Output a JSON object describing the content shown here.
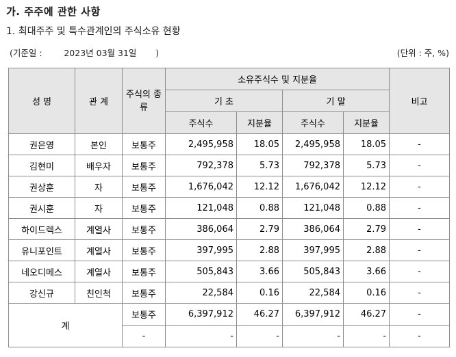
{
  "section_title": "가. 주주에 관한 사항",
  "subsection_title": "1. 최대주주 및 특수관계인의 주식소유 현황",
  "base_date": "(기준일 :        2023년 03월 31일       )",
  "unit": "(단위 : 주, %)",
  "table": {
    "headers": {
      "name": "성 명",
      "relation": "관 계",
      "stock_type": "주식의 종류",
      "ownership_group": "소유주식수 및 지분율",
      "begin": "기 초",
      "end": "기 말",
      "shares": "주식수",
      "ratio": "지분율",
      "note": "비고"
    },
    "rows": [
      {
        "name": "권은영",
        "relation": "본인",
        "type": "보통주",
        "begin_shares": "2,495,958",
        "begin_ratio": "18.05",
        "end_shares": "2,495,958",
        "end_ratio": "18.05",
        "note": "-"
      },
      {
        "name": "김현미",
        "relation": "배우자",
        "type": "보통주",
        "begin_shares": "792,378",
        "begin_ratio": "5.73",
        "end_shares": "792,378",
        "end_ratio": "5.73",
        "note": "-"
      },
      {
        "name": "권상훈",
        "relation": "자",
        "type": "보통주",
        "begin_shares": "1,676,042",
        "begin_ratio": "12.12",
        "end_shares": "1,676,042",
        "end_ratio": "12.12",
        "note": "-"
      },
      {
        "name": "권시훈",
        "relation": "자",
        "type": "보통주",
        "begin_shares": "121,048",
        "begin_ratio": "0.88",
        "end_shares": "121,048",
        "end_ratio": "0.88",
        "note": "-"
      },
      {
        "name": "하이드렉스",
        "relation": "계열사",
        "type": "보통주",
        "begin_shares": "386,064",
        "begin_ratio": "2.79",
        "end_shares": "386,064",
        "end_ratio": "2.79",
        "note": "-"
      },
      {
        "name": "유니포인트",
        "relation": "계열사",
        "type": "보통주",
        "begin_shares": "397,995",
        "begin_ratio": "2.88",
        "end_shares": "397,995",
        "end_ratio": "2.88",
        "note": "-"
      },
      {
        "name": "네오디메스",
        "relation": "계열사",
        "type": "보통주",
        "begin_shares": "505,843",
        "begin_ratio": "3.66",
        "end_shares": "505,843",
        "end_ratio": "3.66",
        "note": "-"
      },
      {
        "name": "강신규",
        "relation": "친인척",
        "type": "보통주",
        "begin_shares": "22,584",
        "begin_ratio": "0.16",
        "end_shares": "22,584",
        "end_ratio": "0.16",
        "note": "-"
      }
    ],
    "total": {
      "label": "계",
      "rows": [
        {
          "type": "보통주",
          "begin_shares": "6,397,912",
          "begin_ratio": "46.27",
          "end_shares": "6,397,912",
          "end_ratio": "46.27",
          "note": "-"
        },
        {
          "type": "-",
          "begin_shares": "-",
          "begin_ratio": "-",
          "end_shares": "-",
          "end_ratio": "-",
          "note": "-"
        }
      ]
    }
  }
}
